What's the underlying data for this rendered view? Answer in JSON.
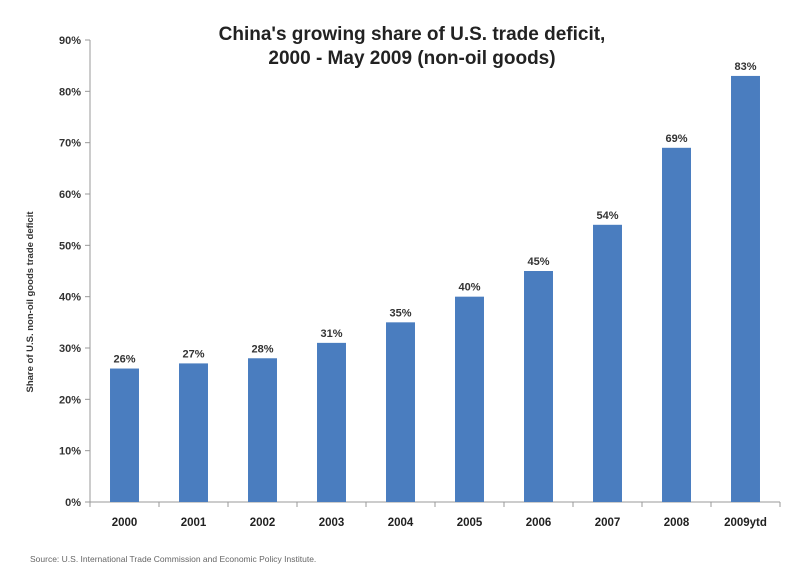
{
  "chart_data": {
    "type": "bar",
    "title_line1": "China's  growing share of U.S. trade deficit,",
    "title_line2": "2000 - May 2009 (non-oil goods)",
    "ylabel": "Share of U.S. non-oil goods trade deficit",
    "xlabel": "",
    "categories": [
      "2000",
      "2001",
      "2002",
      "2003",
      "2004",
      "2005",
      "2006",
      "2007",
      "2008",
      "2009ytd"
    ],
    "values": [
      26,
      27,
      28,
      31,
      35,
      40,
      45,
      54,
      69,
      83
    ],
    "data_labels": [
      "26%",
      "27%",
      "28%",
      "31%",
      "35%",
      "40%",
      "45%",
      "54%",
      "69%",
      "83%"
    ],
    "ylim": [
      0,
      90
    ],
    "y_ticks": [
      "0%",
      "10%",
      "20%",
      "30%",
      "40%",
      "50%",
      "60%",
      "70%",
      "80%",
      "90%"
    ],
    "grid": false,
    "legend": "none",
    "bar_color": "#4a7dbf",
    "source": "Source:  U.S. International Trade Commission and Economic Policy Institute."
  }
}
